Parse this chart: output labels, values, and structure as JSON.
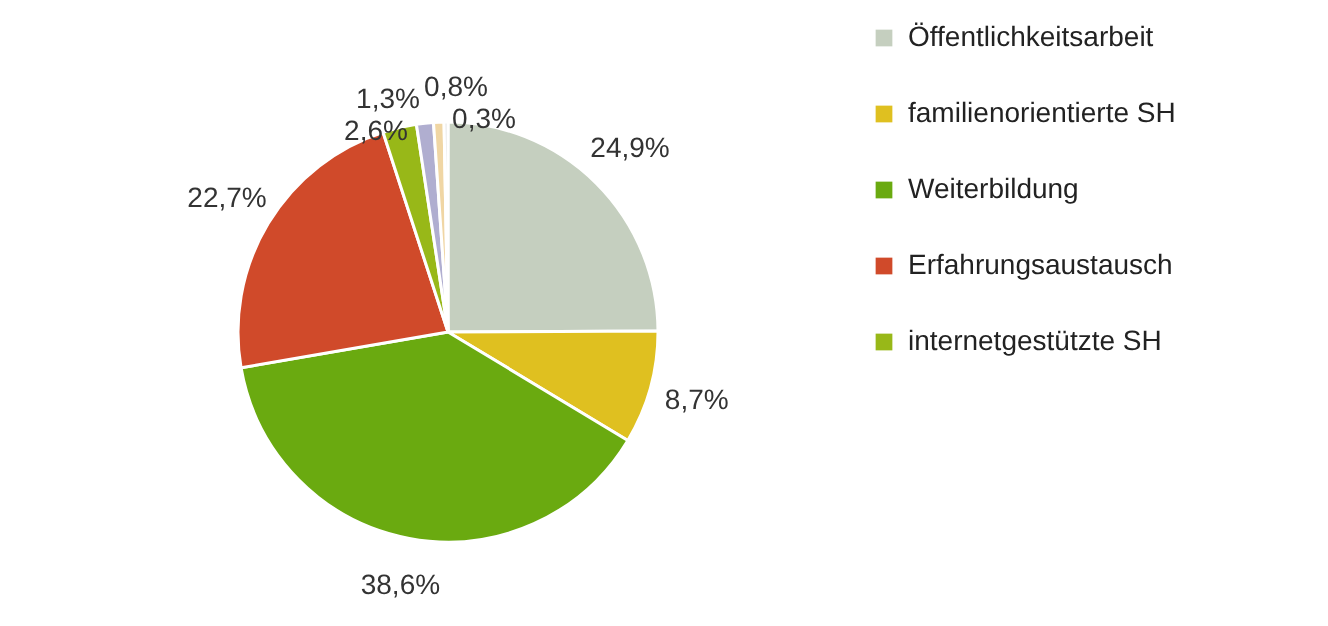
{
  "chart_data": {
    "type": "pie",
    "categories": [
      "Öffentlichkeitsarbeit",
      "familienorientierte SH",
      "Weiterbildung",
      "Erfahrungsaustausch",
      "internetgestützte SH",
      null,
      null,
      null
    ],
    "values": [
      24.9,
      8.7,
      38.6,
      22.7,
      2.6,
      1.3,
      0.8,
      0.3
    ],
    "value_labels": [
      "24,9%",
      "8,7%",
      "38,6%",
      "22,7%",
      "2,6%",
      "1,3%",
      "0,8%",
      "0,3%"
    ],
    "colors": [
      "#c5cfbf",
      "#dfc020",
      "#6aaa10",
      "#d04a2a",
      "#98b818",
      "#b0aed0",
      "#f0d6a4",
      "#e0e0e0"
    ],
    "legend": "right"
  }
}
